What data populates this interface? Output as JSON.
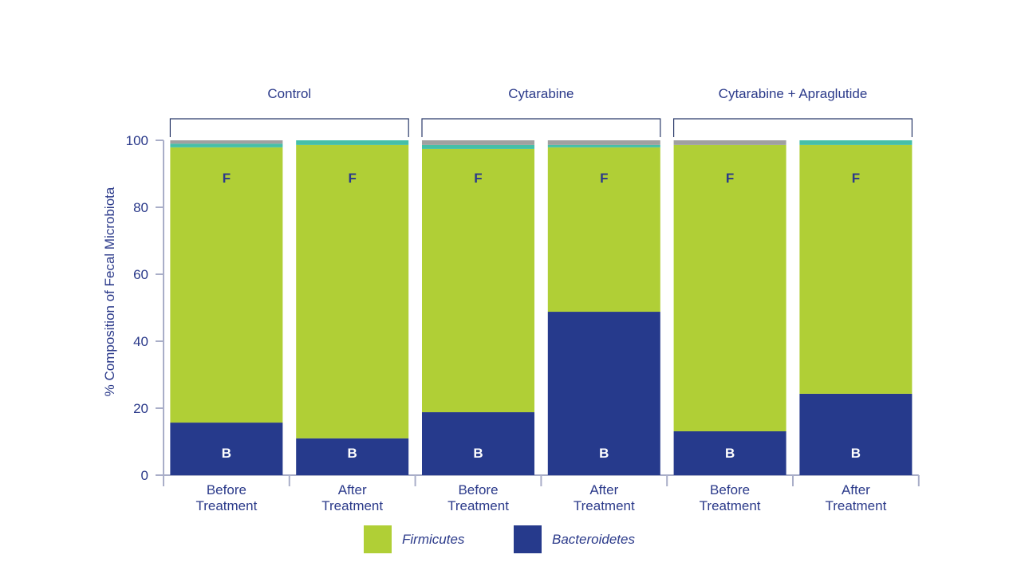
{
  "chart_data": {
    "type": "bar",
    "stacked": true,
    "ylabel": "% Composition of Fecal Microbiota",
    "ylim": [
      0,
      100
    ],
    "yticks": [
      0,
      20,
      40,
      60,
      80,
      100
    ],
    "groups": [
      "Control",
      "Cytarabine",
      "Cytarabine + Apraglutide"
    ],
    "categories": [
      [
        "Before",
        "Treatment"
      ],
      [
        "After",
        "Treatment"
      ],
      [
        "Before",
        "Treatment"
      ],
      [
        "After",
        "Treatment"
      ],
      [
        "Before",
        "Treatment"
      ],
      [
        "After",
        "Treatment"
      ]
    ],
    "series": [
      {
        "name": "Bacteroidetes",
        "short": "B",
        "color": "#263a8c",
        "values": [
          15.7,
          11.0,
          18.8,
          48.8,
          13.1,
          24.3
        ]
      },
      {
        "name": "Firmicutes",
        "short": "F",
        "color": "#b0cf36",
        "values": [
          82.2,
          87.6,
          78.6,
          49.1,
          85.5,
          74.3
        ]
      },
      {
        "name": null,
        "color": "#45bfa8",
        "values": [
          1.1,
          1.4,
          1.2,
          0.7,
          0.0,
          1.4
        ]
      },
      {
        "name": null,
        "color": "#a0a0a0",
        "values": [
          1.0,
          0.0,
          1.4,
          1.4,
          1.4,
          0.0
        ]
      }
    ],
    "legend": {
      "placement": "bottom",
      "entries": [
        "Firmicutes",
        "Bacteroidetes"
      ]
    }
  }
}
